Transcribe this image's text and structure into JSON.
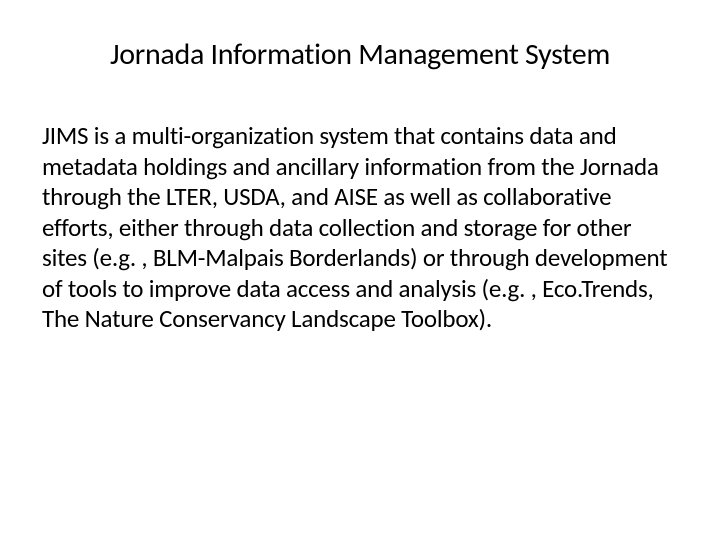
{
  "slide": {
    "title": "Jornada Information Management System",
    "body": "JIMS is a multi-organization system that contains data and metadata holdings and ancillary information from the Jornada through the LTER, USDA, and AISE as well as collaborative efforts, either through data collection and storage for other sites (e.g. , BLM-Malpais Borderlands) or through development of tools to improve data access and analysis (e.g. , Eco.Trends, The Nature Conservancy Landscape Toolbox)."
  },
  "style": {
    "background_color": "#ffffff",
    "text_color": "#000000",
    "title_fontsize": 30,
    "body_fontsize": 25,
    "font_family": "Calibri"
  }
}
